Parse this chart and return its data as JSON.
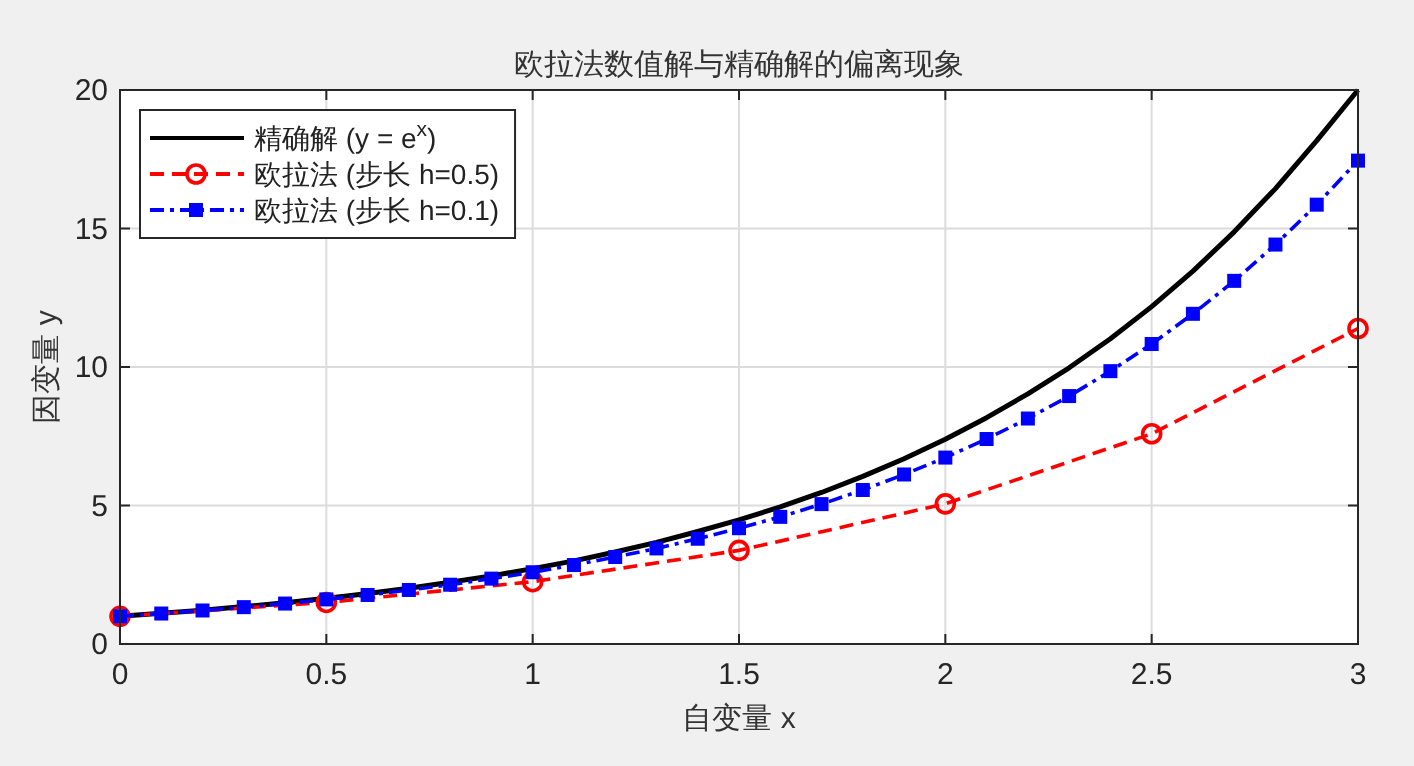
{
  "chart_data": {
    "type": "line",
    "title": "欧拉法数值解与精确解的偏离现象",
    "xlabel": "自变量 x",
    "ylabel": "因变量 y",
    "xlim": [
      0,
      3
    ],
    "ylim": [
      0,
      20
    ],
    "xticks": [
      0,
      0.5,
      1,
      1.5,
      2,
      2.5,
      3
    ],
    "yticks": [
      0,
      5,
      10,
      15,
      20
    ],
    "grid": true,
    "legend": "top left",
    "series": [
      {
        "name": "精确解 (y = e$^{x}$)",
        "color": "#000000",
        "line_style": "solid",
        "marker": "none",
        "x": [
          0,
          0.1,
          0.2,
          0.3,
          0.4,
          0.55,
          0.6,
          0.7,
          0.8,
          0.9,
          1,
          1.1,
          1.2,
          1.3,
          1.4,
          1.5,
          1.6,
          1.7,
          1.8,
          1.9,
          2,
          2.1,
          2.2,
          2.3,
          2.4,
          2.5,
          2.6,
          2.7,
          2.8,
          2.9,
          3
        ],
        "values": [
          1,
          1.11,
          1.22,
          1.35,
          1.49,
          1.73,
          1.82,
          2.01,
          2.23,
          2.46,
          2.72,
          3.0,
          3.32,
          3.67,
          4.06,
          4.48,
          4.95,
          5.47,
          6.05,
          6.69,
          7.39,
          8.17,
          9.03,
          9.97,
          11.02,
          12.18,
          13.46,
          14.88,
          16.44,
          18.17,
          20.0
        ]
      },
      {
        "name": "欧拉法 (步长 h=0.5)",
        "color": "#ff0000",
        "line_style": "dashed",
        "marker": "circle",
        "x": [
          0,
          0.5,
          1,
          1.5,
          2,
          2.5,
          3
        ],
        "values": [
          1,
          1.5,
          2.25,
          3.38,
          5.06,
          7.59,
          11.39
        ]
      },
      {
        "name": "欧拉法 (步长 h=0.1)",
        "color": "#0000ff",
        "line_style": "dashdot",
        "marker": "square",
        "x": [
          0,
          0.1,
          0.2,
          0.3,
          0.4,
          0.5,
          0.6,
          0.7,
          0.8,
          0.9,
          1,
          1.1,
          1.2,
          1.3,
          1.4,
          1.5,
          1.6,
          1.7,
          1.8,
          1.9,
          2,
          2.1,
          2.2,
          2.3,
          2.4,
          2.5,
          2.6,
          2.7,
          2.8,
          2.9,
          3
        ],
        "values": [
          1,
          1.1,
          1.21,
          1.33,
          1.46,
          1.61,
          1.77,
          1.95,
          2.14,
          2.36,
          2.59,
          2.85,
          3.14,
          3.45,
          3.8,
          4.18,
          4.59,
          5.05,
          5.56,
          6.12,
          6.73,
          7.4,
          8.14,
          8.95,
          9.85,
          10.83,
          11.92,
          13.11,
          14.42,
          15.86,
          17.45
        ]
      }
    ]
  }
}
